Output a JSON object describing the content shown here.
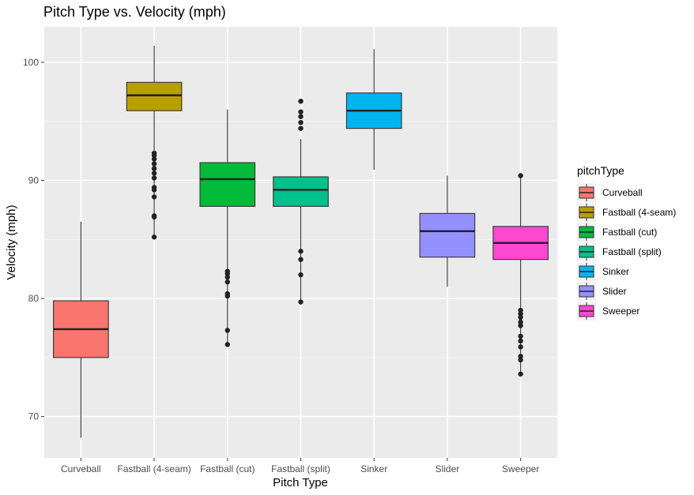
{
  "chart_data": {
    "type": "box",
    "title": "Pitch Type vs. Velocity (mph)",
    "xlabel": "Pitch Type",
    "ylabel": "Velocity (mph)",
    "ylim": [
      66.5,
      103.0
    ],
    "yticks": [
      70,
      80,
      90,
      100
    ],
    "categories": [
      "Curveball",
      "Fastball (4-seam)",
      "Fastball (cut)",
      "Fastball (split)",
      "Sinker",
      "Slider",
      "Sweeper"
    ],
    "legend_title": "pitchType",
    "legend_position": "right",
    "grid": true,
    "series": [
      {
        "name": "Curveball",
        "color": "#F8766D",
        "whisker_low": 68.2,
        "q1": 75.0,
        "median": 77.4,
        "q3": 79.8,
        "whisker_high": 86.5,
        "outliers": []
      },
      {
        "name": "Fastball (4-seam)",
        "color": "#B79F00",
        "whisker_low": 85.2,
        "q1": 95.9,
        "median": 97.2,
        "q3": 98.3,
        "whisker_high": 101.4,
        "outliers": [
          85.2,
          86.9,
          87.0,
          88.6,
          89.2,
          89.4,
          90.2,
          90.6,
          91.0,
          91.4,
          91.8,
          92.1,
          92.3
        ]
      },
      {
        "name": "Fastball (cut)",
        "color": "#00BA38",
        "whisker_low": 76.1,
        "q1": 87.8,
        "median": 90.1,
        "q3": 91.5,
        "whisker_high": 96.0,
        "outliers": [
          76.1,
          77.3,
          80.2,
          80.4,
          81.4,
          81.8,
          82.1,
          82.3
        ]
      },
      {
        "name": "Fastball (split)",
        "color": "#00C08B",
        "whisker_low": 79.7,
        "q1": 87.8,
        "median": 89.2,
        "q3": 90.3,
        "whisker_high": 93.5,
        "outliers": [
          79.7,
          82.0,
          83.3,
          84.0,
          94.4,
          94.9,
          95.4,
          95.8,
          96.7
        ]
      },
      {
        "name": "Sinker",
        "color": "#00B4EF",
        "whisker_low": 90.9,
        "q1": 94.4,
        "median": 95.9,
        "q3": 97.4,
        "whisker_high": 101.1,
        "outliers": []
      },
      {
        "name": "Slider",
        "color": "#9590FF",
        "whisker_low": 81.0,
        "q1": 83.5,
        "median": 85.7,
        "q3": 87.2,
        "whisker_high": 90.4,
        "outliers": []
      },
      {
        "name": "Sweeper",
        "color": "#FF48D0",
        "whisker_low": 73.6,
        "q1": 83.3,
        "median": 84.7,
        "q3": 86.1,
        "whisker_high": 90.3,
        "outliers": [
          73.6,
          74.8,
          75.1,
          75.9,
          76.4,
          76.8,
          77.7,
          78.0,
          78.4,
          78.7,
          79.0,
          90.4
        ]
      }
    ]
  }
}
